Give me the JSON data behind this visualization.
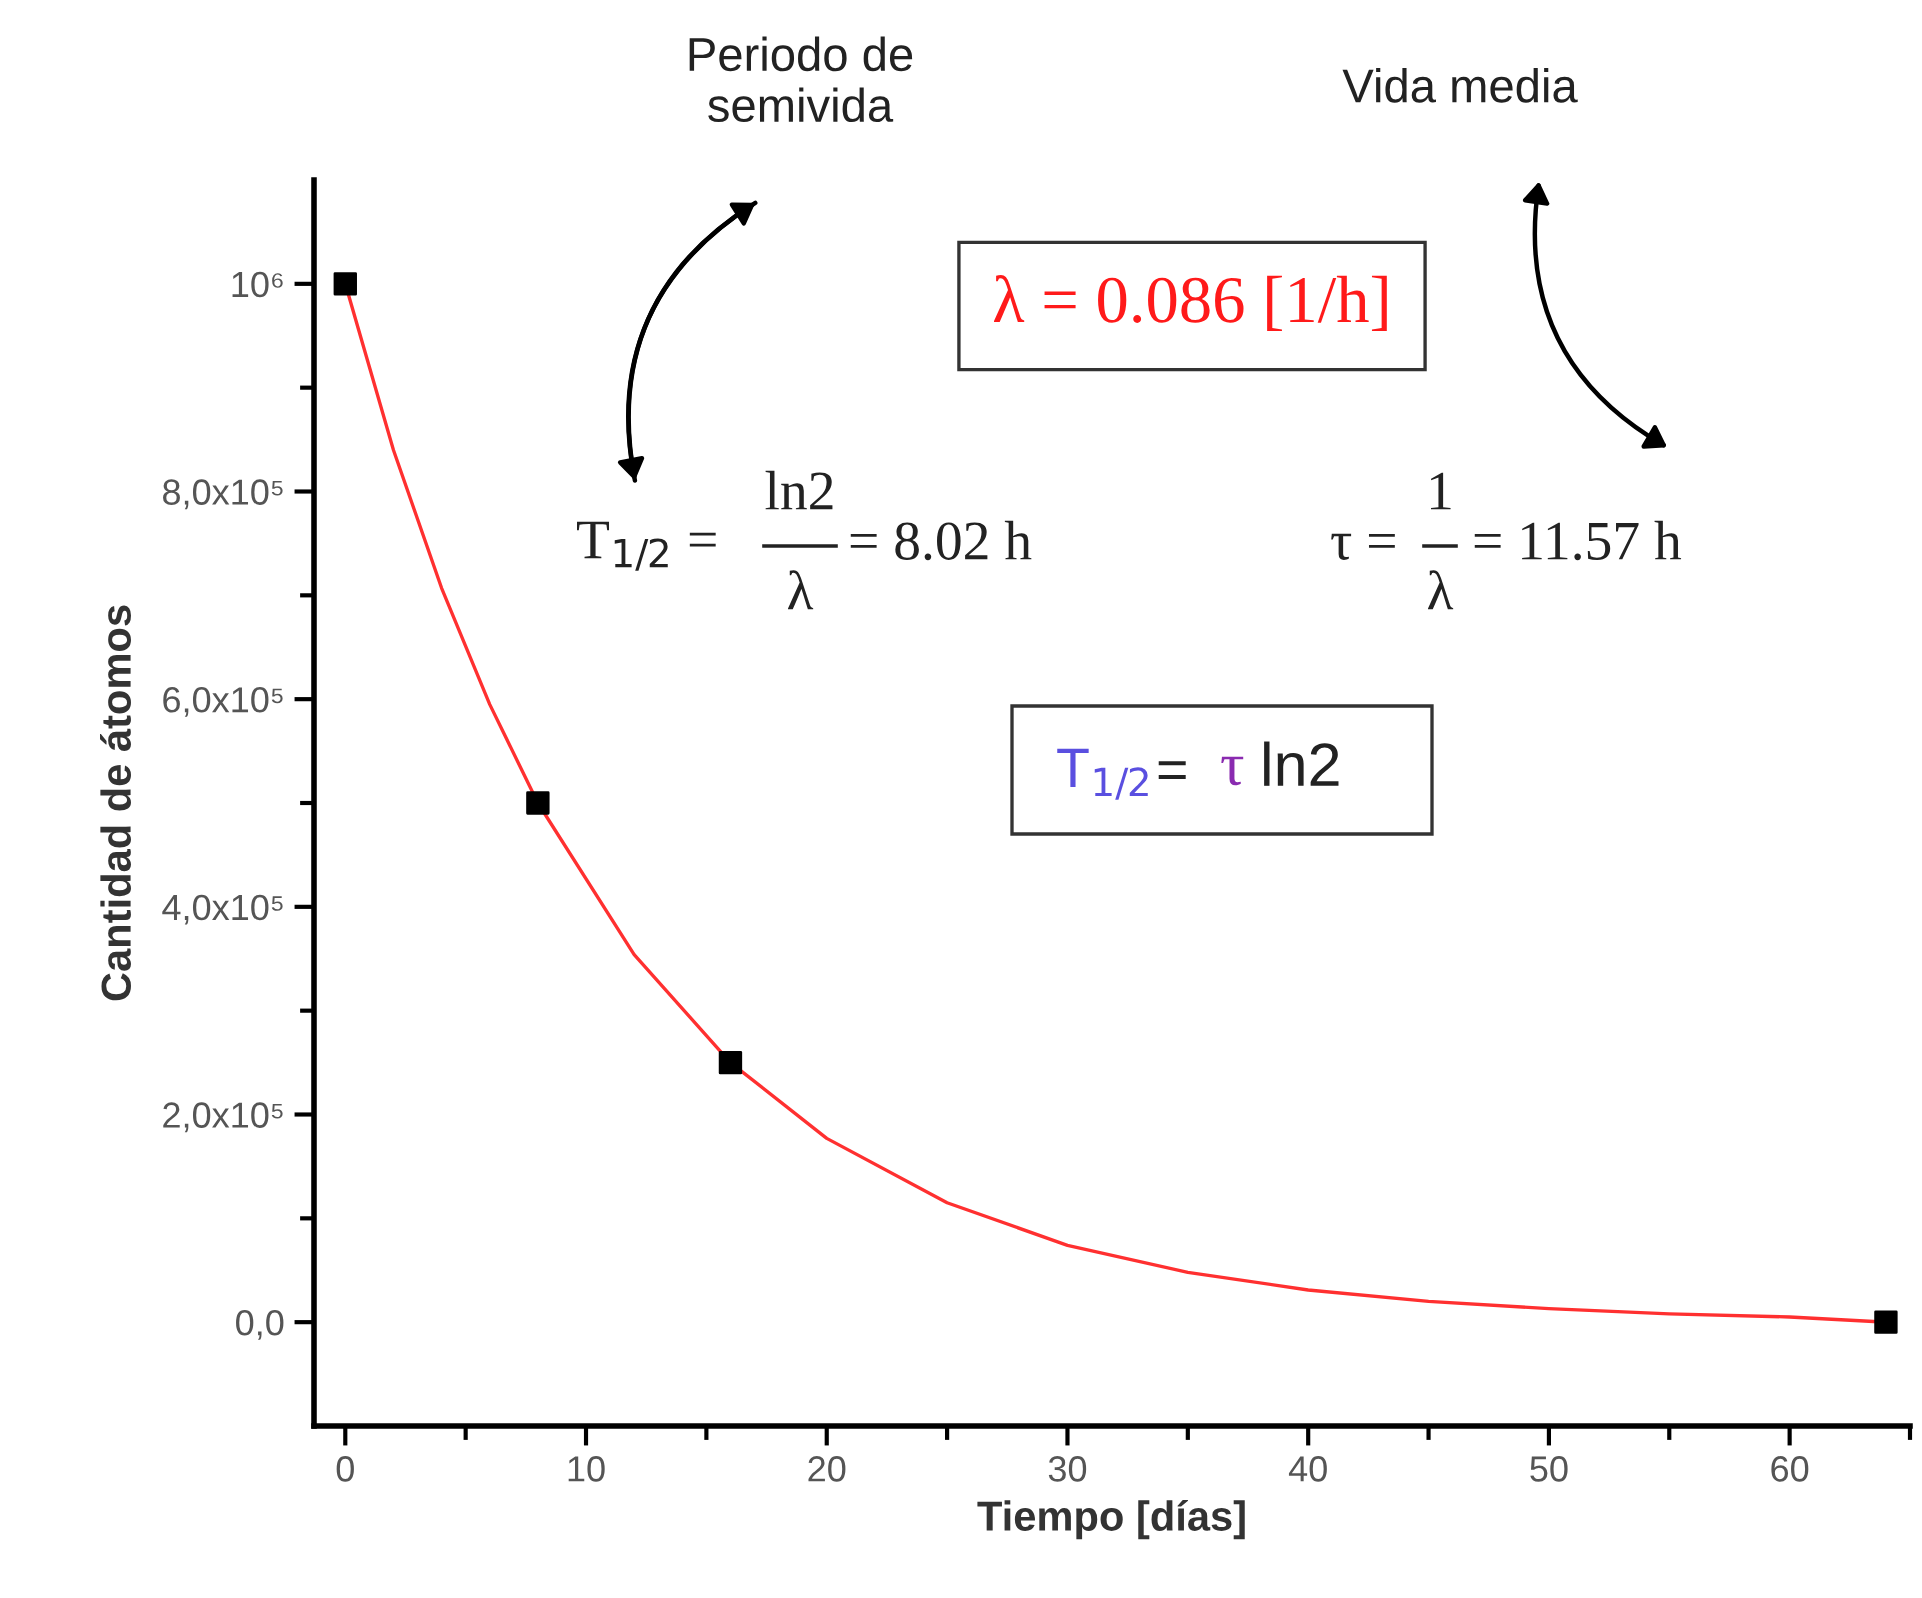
{
  "chart_data": {
    "type": "scatter",
    "xlabel": "Tiempo [días]",
    "ylabel": "Cantidad de átomos",
    "series": [
      {
        "type": "line",
        "color": "#ff3030",
        "marker": "none",
        "x": [
          0,
          2,
          4,
          6,
          8,
          12,
          16,
          20,
          25,
          30,
          35,
          40,
          45,
          50,
          55,
          60,
          64
        ],
        "values": [
          1000000,
          840000,
          707000,
          595000,
          500000,
          354000,
          250000,
          177000,
          115000,
          74000,
          48000,
          31000,
          20000,
          13000,
          8000,
          5000,
          0
        ]
      },
      {
        "color": "#000000",
        "marker": "square",
        "x": [
          0,
          8,
          16,
          64
        ],
        "values": [
          1000000,
          500000,
          250000,
          0
        ]
      }
    ],
    "xlim": [
      -1.3,
      65
    ],
    "ylim": [
      -100000,
      1100000
    ],
    "xticks": [
      0,
      {
        "value": 5,
        "label": null
      },
      10,
      {
        "value": 15,
        "label": null
      },
      20,
      {
        "value": 25,
        "label": null
      },
      30,
      {
        "value": 35,
        "label": null
      },
      40,
      {
        "value": 45,
        "label": null
      },
      50,
      {
        "value": 55,
        "label": null
      },
      60,
      {
        "value": 65,
        "label": null
      }
    ],
    "yticks": [
      {
        "value": 0,
        "label": "0,0"
      },
      {
        "value": 100000,
        "label": null
      },
      {
        "value": 200000,
        "label": "2,0x10⁵"
      },
      {
        "value": 300000,
        "label": null
      },
      {
        "value": 400000,
        "label": "4,0x10⁵"
      },
      {
        "value": 500000,
        "label": null
      },
      {
        "value": 600000,
        "label": "6,0x10⁵"
      },
      {
        "value": 700000,
        "label": null
      },
      {
        "value": 800000,
        "label": "8,0x10⁵"
      },
      {
        "value": 900000,
        "label": null
      },
      {
        "value": 1000000,
        "label": "10⁶"
      }
    ],
    "grid": false,
    "legend": false,
    "annotations": [
      "Periodo de\nsemivida",
      "Vida media",
      "λ = 0.086 [1/h]",
      "T$_{1/2}$ =",
      "ln2",
      "λ",
      "= 8.02 h",
      "τ =",
      "1",
      "λ",
      "= 11.57 h",
      "T$_{1/2}$",
      "=",
      "τ",
      "ln2"
    ]
  }
}
